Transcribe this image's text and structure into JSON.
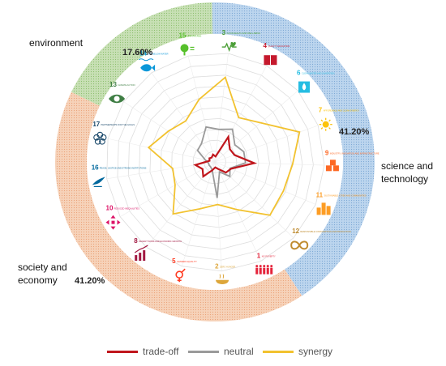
{
  "chart_data": {
    "type": "radar",
    "sectors": [
      {
        "name": "environment",
        "share_label": "17.60%",
        "color": "#b9d6a3"
      },
      {
        "name_lines": [
          "science and",
          "technology"
        ],
        "share_label": "41.20%",
        "color": "#a9c8e8"
      },
      {
        "name_lines": [
          "society and",
          "economy"
        ],
        "share_label": "41.20%",
        "color": "#f3c2a1"
      }
    ],
    "categories": [
      {
        "num": "3",
        "label": "GOOD HEALTH AND WELL-BEING",
        "color": "#4c9f38",
        "icon": "heartbeat-icon"
      },
      {
        "num": "4",
        "label": "QUALITY EDUCATION",
        "color": "#c5192d",
        "icon": "book-icon"
      },
      {
        "num": "6",
        "label": "CLEAN WATER AND SANITATION",
        "color": "#26bde2",
        "icon": "water-drop-icon"
      },
      {
        "num": "7",
        "label": "AFFORDABLE AND CLEAN ENERGY",
        "color": "#fcc30b",
        "icon": "sun-icon"
      },
      {
        "num": "9",
        "label": "INDUSTRY, INNOVATION AND INFRASTRUCTURE",
        "color": "#fd6925",
        "icon": "cubes-icon"
      },
      {
        "num": "11",
        "label": "SUSTAINABLE CITIES AND COMMUNITIES",
        "color": "#fd9d24",
        "icon": "city-icon"
      },
      {
        "num": "12",
        "label": "RESPONSIBLE CONSUMPTION AND PRODUCTION",
        "color": "#bf8b2e",
        "icon": "infinity-icon"
      },
      {
        "num": "1",
        "label": "NO POVERTY",
        "color": "#e5243b",
        "icon": "family-icon"
      },
      {
        "num": "2",
        "label": "ZERO HUNGER",
        "color": "#dda63a",
        "icon": "bowl-icon"
      },
      {
        "num": "5",
        "label": "GENDER EQUALITY",
        "color": "#ff3a21",
        "icon": "gender-icon"
      },
      {
        "num": "8",
        "label": "DECENT WORK AND ECONOMIC GROWTH",
        "color": "#a21942",
        "icon": "growth-chart-icon"
      },
      {
        "num": "10",
        "label": "REDUCED INEQUALITIES",
        "color": "#dd1367",
        "icon": "arrows-icon"
      },
      {
        "num": "16",
        "label": "PEACE, JUSTICE AND STRONG INSTITUTIONS",
        "color": "#00689d",
        "icon": "dove-icon"
      },
      {
        "num": "17",
        "label": "PARTNERSHIPS FOR THE GOALS",
        "color": "#19486a",
        "icon": "rings-icon"
      },
      {
        "num": "13",
        "label": "CLIMATE ACTION",
        "color": "#3f7e44",
        "icon": "eye-globe-icon"
      },
      {
        "num": "14",
        "label": "LIFE BELOW WATER",
        "color": "#0a97d9",
        "icon": "fish-icon"
      },
      {
        "num": "15",
        "label": "LIFE ON LAND",
        "color": "#56c02b",
        "icon": "tree-icon"
      }
    ],
    "rlim": [
      0,
      10
    ],
    "series": [
      {
        "name": "trade-off",
        "color": "#c0161c",
        "values": [
          0.5,
          2.6,
          1.8,
          1.9,
          3.6,
          1.6,
          1.4,
          0.7,
          0.5,
          0.8,
          1.7,
          1.3,
          1.8,
          0.5,
          0.6,
          0.5,
          0.7
        ]
      },
      {
        "name": "neutral",
        "color": "#9a9a9a",
        "values": [
          3.0,
          3.4,
          2.4,
          2.8,
          2.8,
          1.5,
          1.9,
          1.0,
          3.3,
          0.8,
          0.6,
          0.6,
          0.6,
          0.9,
          1.9,
          2.1,
          3.3
        ]
      },
      {
        "name": "synergy",
        "color": "#f2c22f",
        "values": [
          7.8,
          4.6,
          5.5,
          8.2,
          7.1,
          6.8,
          7.0,
          4.8,
          3.9,
          4.5,
          6.1,
          4.2,
          3.9,
          6.2,
          5.1,
          4.6,
          5.9
        ]
      }
    ]
  }
}
